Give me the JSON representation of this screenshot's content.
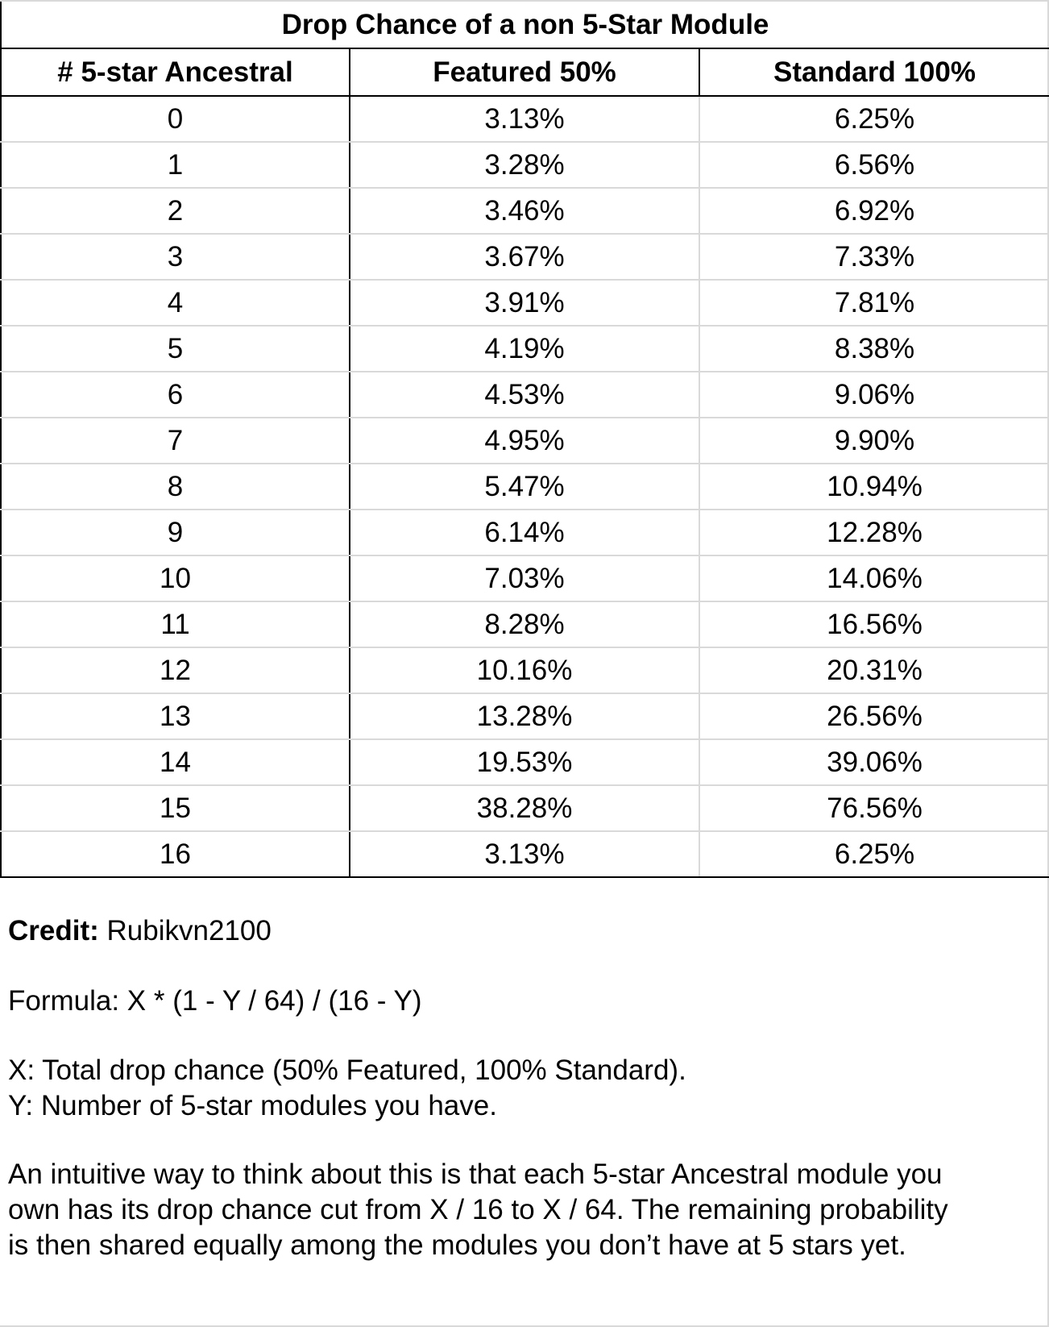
{
  "table": {
    "title": "Drop Chance of a non 5-Star Module",
    "headers": [
      "# 5-star Ancestral",
      "Featured 50%",
      "Standard 100%"
    ],
    "rows": [
      [
        "0",
        "3.13%",
        "6.25%"
      ],
      [
        "1",
        "3.28%",
        "6.56%"
      ],
      [
        "2",
        "3.46%",
        "6.92%"
      ],
      [
        "3",
        "3.67%",
        "7.33%"
      ],
      [
        "4",
        "3.91%",
        "7.81%"
      ],
      [
        "5",
        "4.19%",
        "8.38%"
      ],
      [
        "6",
        "4.53%",
        "9.06%"
      ],
      [
        "7",
        "4.95%",
        "9.90%"
      ],
      [
        "8",
        "5.47%",
        "10.94%"
      ],
      [
        "9",
        "6.14%",
        "12.28%"
      ],
      [
        "10",
        "7.03%",
        "14.06%"
      ],
      [
        "11",
        "8.28%",
        "16.56%"
      ],
      [
        "12",
        "10.16%",
        "20.31%"
      ],
      [
        "13",
        "13.28%",
        "26.56%"
      ],
      [
        "14",
        "19.53%",
        "39.06%"
      ],
      [
        "15",
        "38.28%",
        "76.56%"
      ],
      [
        "16",
        "3.13%",
        "6.25%"
      ]
    ]
  },
  "notes": {
    "credit_label": "Credit:",
    "credit_value": " Rubikvn2100",
    "formula": "Formula: X * (1 - Y / 64) / (16 - Y)",
    "x_def": "X: Total drop chance (50% Featured, 100% Standard).",
    "y_def": "Y: Number of 5-star modules you have.",
    "explanation_lines": [
      "An intuitive way to think about this is that each 5-star Ancestral module you",
      "own has its drop chance cut from X / 16 to X / 64. The remaining probability",
      "is then shared equally among the modules you don’t have at 5 stars yet."
    ]
  },
  "colors": {
    "border_dark": "#000000",
    "border_light": "#d9d9d9",
    "background": "#ffffff"
  }
}
